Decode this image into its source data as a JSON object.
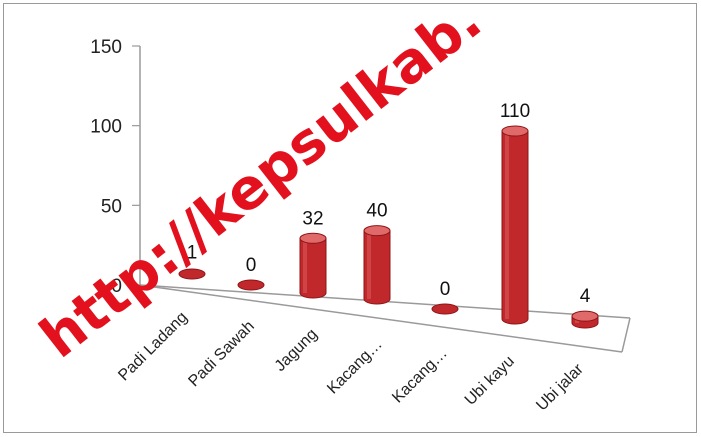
{
  "chart_data": {
    "type": "bar",
    "style": "3d-cylinder",
    "categories": [
      "Padi Ladang",
      "Padi Sawah",
      "Jagung",
      "Kacang…",
      "Kacang…",
      "Ubi kayu",
      "Ubi jalar"
    ],
    "values": [
      1,
      0,
      32,
      40,
      0,
      110,
      4
    ],
    "data_labels": [
      "1",
      "0",
      "32",
      "40",
      "0",
      "110",
      "4"
    ],
    "ylim": [
      0,
      150
    ],
    "yticks": [
      "0",
      "50",
      "100",
      "150"
    ],
    "grid": false,
    "legend": "none",
    "bar_color": "#c0282c"
  },
  "watermark": "http://kepsulkab.",
  "colors": {
    "bar": "#c0282c",
    "bar_dark": "#8e1416",
    "bar_top": "#e06a6a",
    "watermark": "#e3101e",
    "axis": "#9a9a9a"
  }
}
